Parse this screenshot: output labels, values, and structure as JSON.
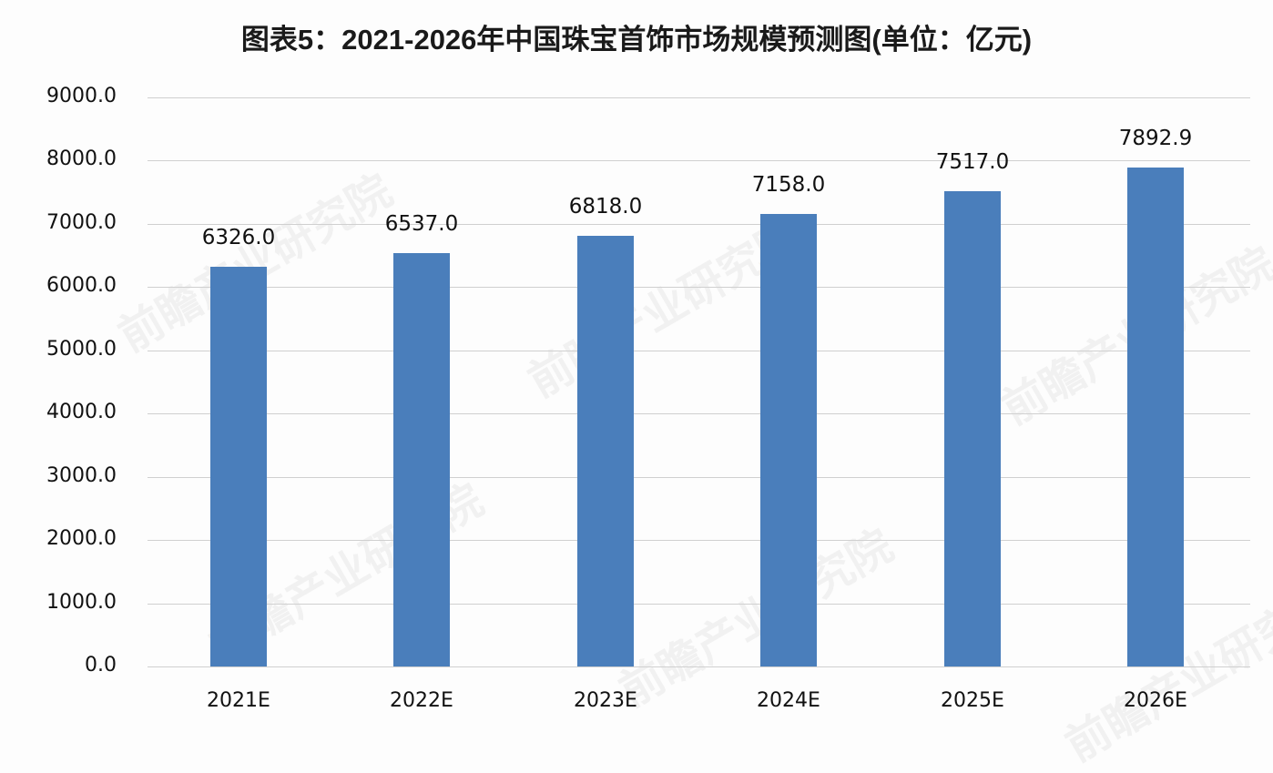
{
  "title": "图表5：2021-2026年中国珠宝首饰市场规模预测图(单位：亿元)",
  "watermark": "前瞻产业研究院",
  "colors": {
    "bar": "#4a7ebb",
    "grid": "#d0d0d0",
    "background": "#fdfdfd"
  },
  "y_ticks": [
    "9000.0",
    "8000.0",
    "7000.0",
    "6000.0",
    "5000.0",
    "4000.0",
    "3000.0",
    "2000.0",
    "1000.0",
    "0.0"
  ],
  "x_ticks": [
    "2021E",
    "2022E",
    "2023E",
    "2024E",
    "2025E",
    "2026E"
  ],
  "data_labels": [
    "6326.0",
    "6537.0",
    "6818.0",
    "7158.0",
    "7517.0",
    "7892.9"
  ],
  "chart_data": {
    "type": "bar",
    "title": "图表5：2021-2026年中国珠宝首饰市场规模预测图(单位：亿元)",
    "categories": [
      "2021E",
      "2022E",
      "2023E",
      "2024E",
      "2025E",
      "2026E"
    ],
    "values": [
      6326.0,
      6537.0,
      6818.0,
      7158.0,
      7517.0,
      7892.9
    ],
    "xlabel": "",
    "ylabel": "",
    "unit": "亿元",
    "ylim": [
      0,
      9000
    ],
    "yticks": [
      0,
      1000,
      2000,
      3000,
      4000,
      5000,
      6000,
      7000,
      8000,
      9000
    ],
    "grid": true,
    "legend": null,
    "data_labels_shown": true
  }
}
